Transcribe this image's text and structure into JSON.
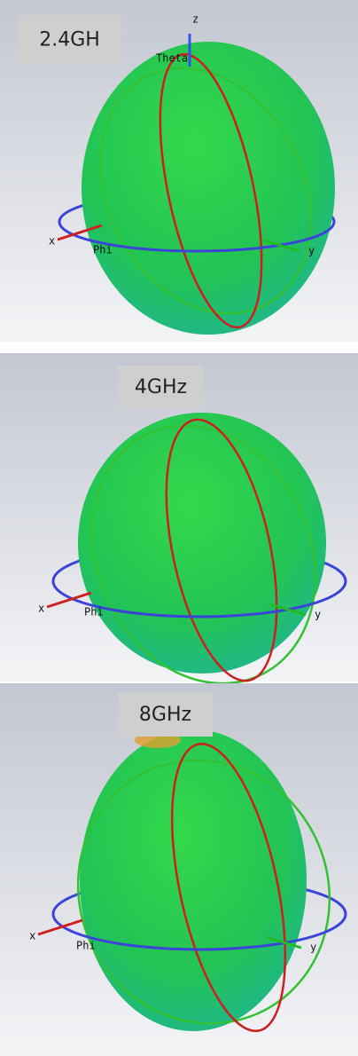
{
  "panels": [
    {
      "label": "2.4GH",
      "axis_labels": [
        "z",
        "Theta",
        "x",
        "Phi",
        "y"
      ]
    },
    {
      "label": "4GHz",
      "axis_labels": [
        "x",
        "Phi",
        "y"
      ]
    },
    {
      "label": "8GHz",
      "axis_labels": [
        "x",
        "Phi",
        "y"
      ]
    }
  ]
}
